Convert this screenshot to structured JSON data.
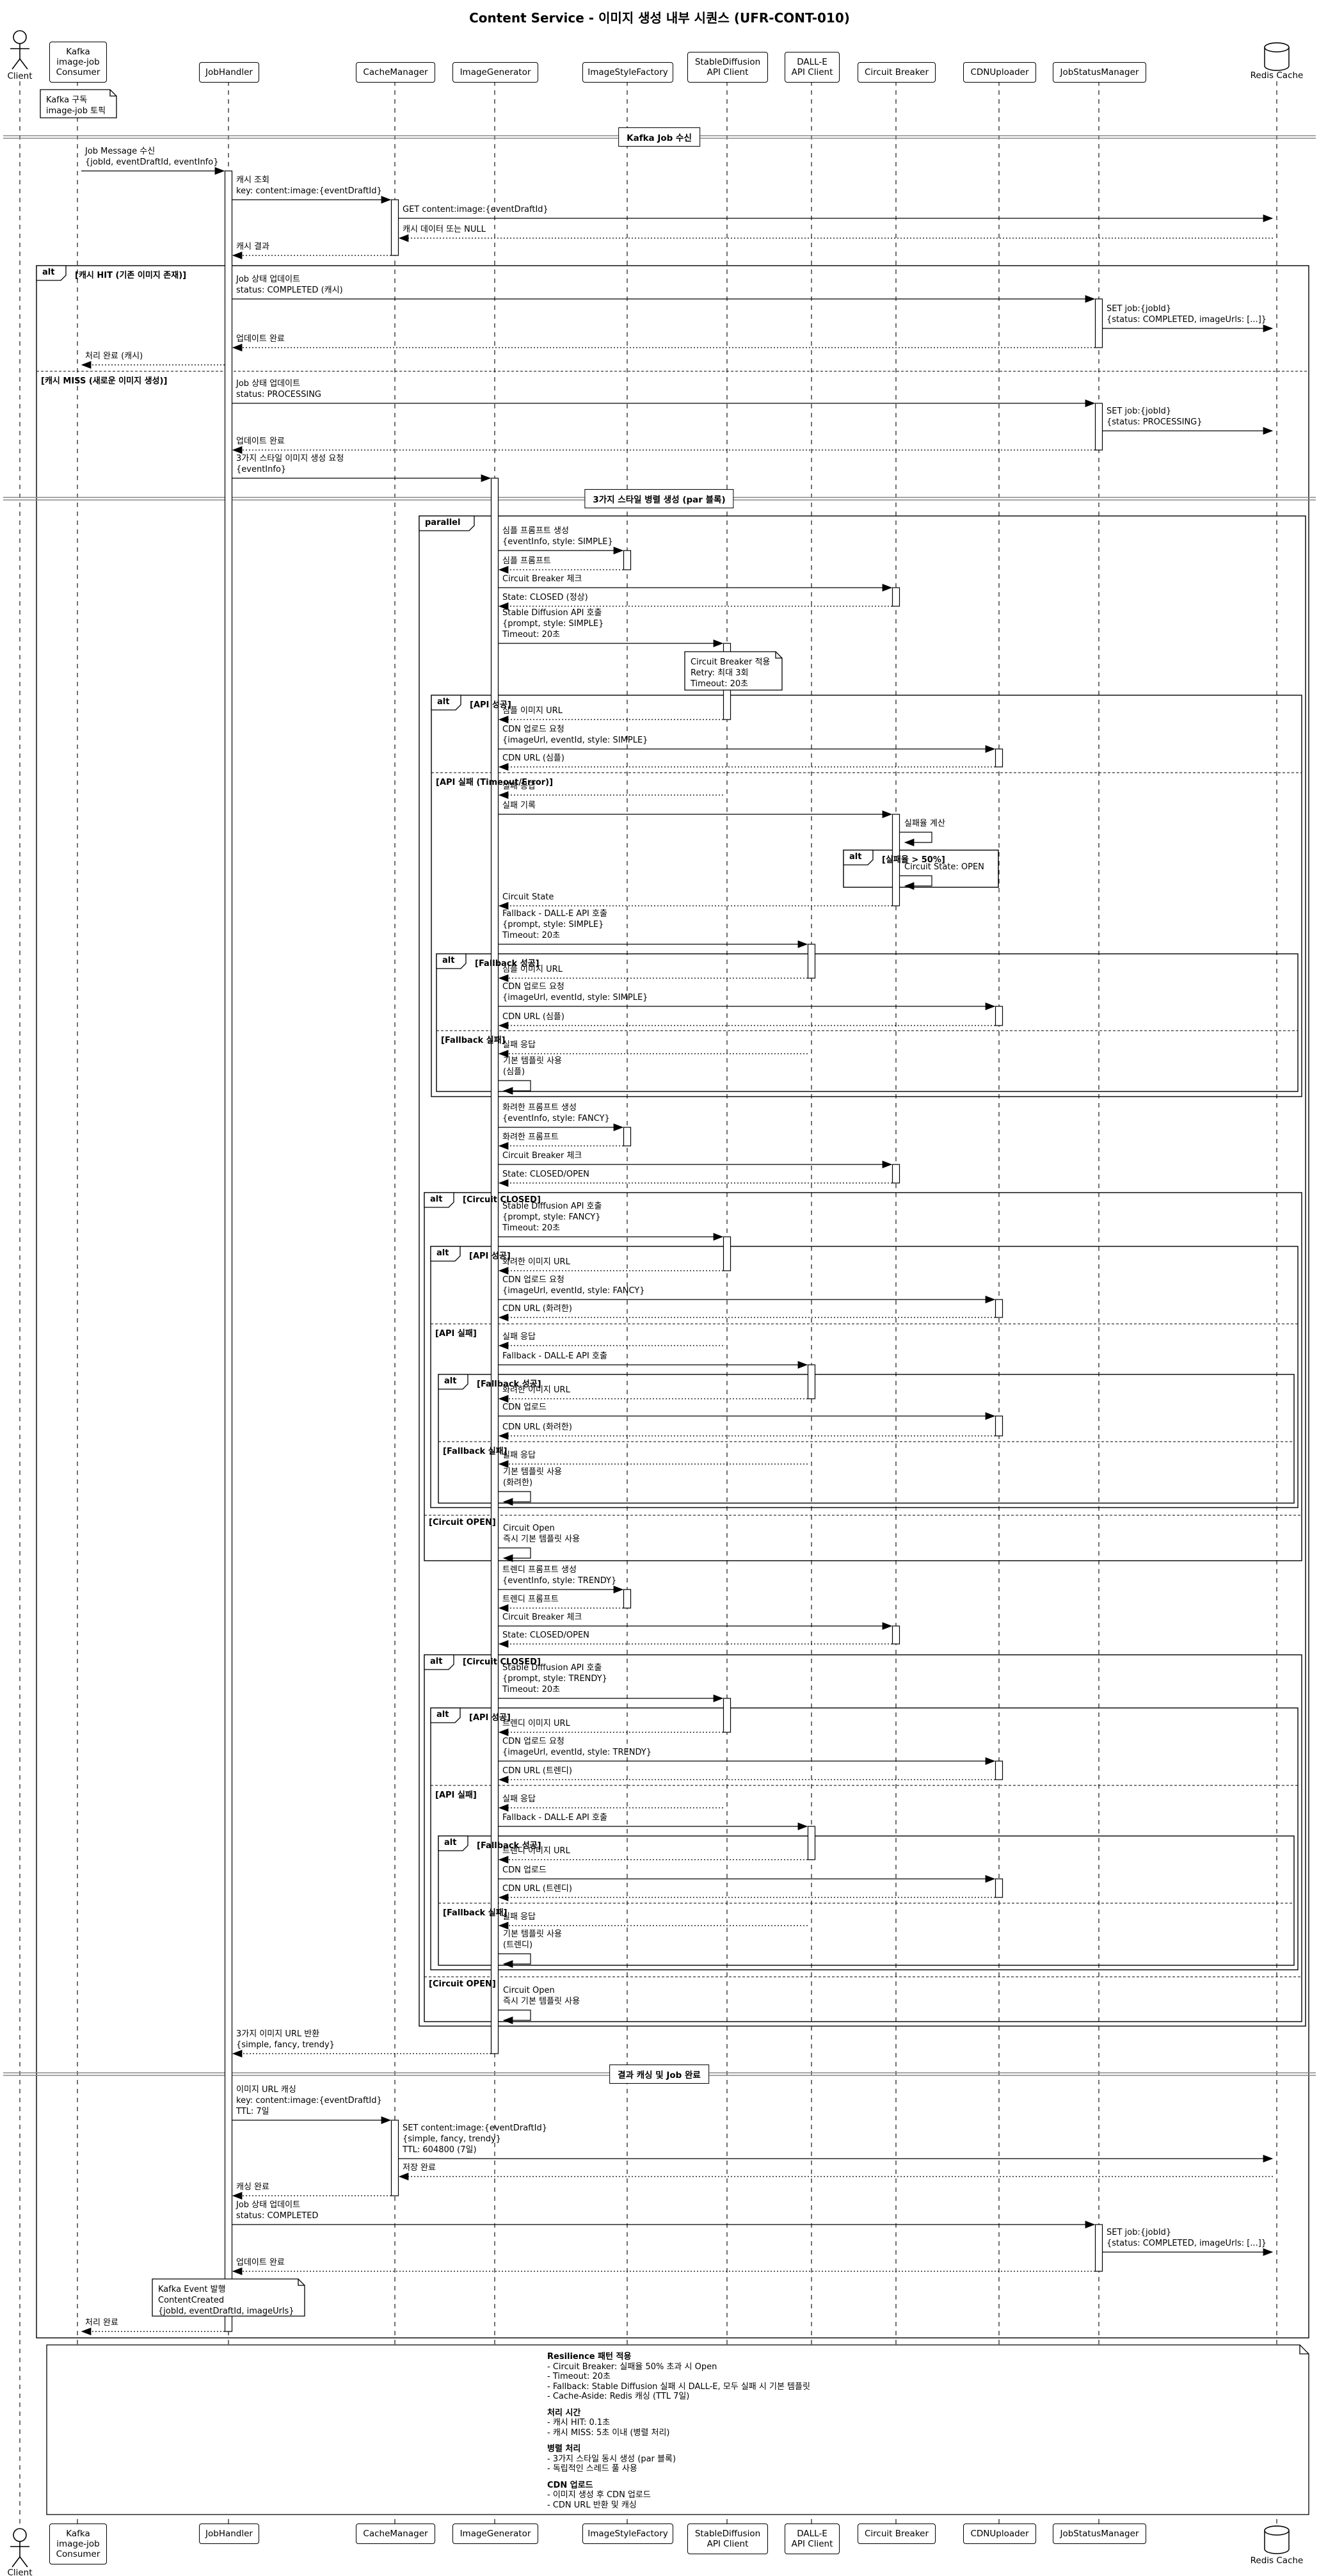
{
  "title": "Content Service - 이미지 생성 내부 시퀀스 (UFR-CONT-010)",
  "participants": [
    {
      "id": "client",
      "type": "actor",
      "label": [
        "Client"
      ]
    },
    {
      "id": "kafka",
      "type": "box",
      "label": [
        "Kafka",
        "image-job",
        "Consumer"
      ]
    },
    {
      "id": "jobhandler",
      "type": "box",
      "label": [
        "JobHandler"
      ]
    },
    {
      "id": "cache",
      "type": "box",
      "label": [
        "CacheManager"
      ]
    },
    {
      "id": "imggen",
      "type": "box",
      "label": [
        "ImageGenerator"
      ]
    },
    {
      "id": "stylefactory",
      "type": "box",
      "label": [
        "ImageStyleFactory"
      ]
    },
    {
      "id": "sd",
      "type": "box",
      "label": [
        "StableDiffusion",
        "API Client"
      ]
    },
    {
      "id": "dalle",
      "type": "box",
      "label": [
        "DALL-E",
        "API Client"
      ]
    },
    {
      "id": "cb",
      "type": "box",
      "label": [
        "Circuit Breaker"
      ]
    },
    {
      "id": "cdn",
      "type": "box",
      "label": [
        "CDNUploader"
      ]
    },
    {
      "id": "jsm",
      "type": "box",
      "label": [
        "JobStatusManager"
      ]
    },
    {
      "id": "redis",
      "type": "database",
      "label": [
        "Redis Cache"
      ]
    }
  ],
  "dividers": [
    {
      "text": "Kafka Job 수신"
    },
    {
      "text": "3가지 스타일 병렬 생성 (par 블록)"
    },
    {
      "text": "결과 캐싱 및 Job 완료"
    }
  ],
  "frames": [
    {
      "label": "alt",
      "guards": [
        "[캐시 HIT (기존 이미지 존재)]",
        "[캐시 MISS (새로운 이미지 생성)]"
      ]
    },
    {
      "label": "parallel",
      "guards": []
    },
    {
      "label": "alt",
      "guards": [
        "[API 성공]",
        "[API 실패 (Timeout/Error)]"
      ]
    },
    {
      "label": "alt",
      "guards": [
        "[실패율 > 50%]"
      ]
    },
    {
      "label": "alt",
      "guards": [
        "[Fallback 성공]",
        "[Fallback 실패]"
      ]
    },
    {
      "label": "alt",
      "guards": [
        "[Circuit CLOSED]",
        "[Circuit OPEN]"
      ]
    },
    {
      "label": "alt",
      "guards": [
        "[API 성공]",
        "[API 실패]"
      ]
    },
    {
      "label": "alt",
      "guards": [
        "[Fallback 성공]",
        "[Fallback 실패]"
      ]
    },
    {
      "label": "alt",
      "guards": [
        "[Circuit CLOSED]",
        "[Circuit OPEN]"
      ]
    },
    {
      "label": "alt",
      "guards": [
        "[API 성공]",
        "[API 실패]"
      ]
    },
    {
      "label": "alt",
      "guards": [
        "[Fallback 성공]",
        "[Fallback 실패]"
      ]
    }
  ],
  "notes": [
    {
      "lines": [
        "Kafka 구독",
        "image-job 토픽"
      ]
    },
    {
      "lines": [
        "Circuit Breaker 적용",
        "Retry: 최대 3회",
        "Timeout: 20초"
      ]
    },
    {
      "lines": [
        "Kafka Event 발행",
        "ContentCreated",
        "{jobId, eventDraftId, imageUrls}"
      ]
    }
  ],
  "legend": {
    "sections": [
      {
        "heading": "Resilience 패턴 적용",
        "items": [
          "- Circuit Breaker: 실패율 50% 초과 시 Open",
          "- Timeout: 20초",
          "- Fallback: Stable Diffusion 실패 시 DALL-E, 모두 실패 시 기본 템플릿",
          "- Cache-Aside: Redis 캐싱 (TTL 7일)"
        ]
      },
      {
        "heading": "처리 시간",
        "items": [
          "- 캐시 HIT: 0.1초",
          "- 캐시 MISS: 5초 이내 (병렬 처리)"
        ]
      },
      {
        "heading": "병렬 처리",
        "items": [
          "- 3가지 스타일 동시 생성 (par 블록)",
          "- 독립적인 스레드 풀 사용"
        ]
      },
      {
        "heading": "CDN 업로드",
        "items": [
          "- 이미지 생성 후 CDN 업로드",
          "- CDN URL 반환 및 캐싱"
        ]
      }
    ]
  },
  "messages": [
    {
      "kind": "msg",
      "from": "kafka",
      "to": "jobhandler",
      "style": "solid",
      "lines": [
        "Job Message 수신",
        "{jobId, eventDraftId, eventInfo}"
      ]
    },
    {
      "kind": "msg",
      "from": "jobhandler",
      "to": "cache",
      "style": "solid",
      "lines": [
        "캐시 조회",
        "key: content:image:{eventDraftId}"
      ]
    },
    {
      "kind": "msg",
      "from": "cache",
      "to": "redis",
      "style": "solid",
      "lines": [
        "GET content:image:{eventDraftId}"
      ]
    },
    {
      "kind": "msg",
      "from": "redis",
      "to": "cache",
      "style": "return",
      "lines": [
        "캐시 데이터 또는 NULL"
      ]
    },
    {
      "kind": "msg",
      "from": "cache",
      "to": "jobhandler",
      "style": "return",
      "lines": [
        "캐시 결과"
      ]
    },
    {
      "kind": "msg",
      "from": "jobhandler",
      "to": "jsm",
      "style": "solid",
      "lines": [
        "Job 상태 업데이트",
        "status: COMPLETED (캐시)"
      ]
    },
    {
      "kind": "msg",
      "from": "jsm",
      "to": "redis",
      "style": "solid",
      "lines": [
        "SET job:{jobId}",
        "{status: COMPLETED, imageUrls: [...]}"
      ]
    },
    {
      "kind": "msg",
      "from": "jsm",
      "to": "jobhandler",
      "style": "return",
      "lines": [
        "업데이트 완료"
      ]
    },
    {
      "kind": "msg",
      "from": "jobhandler",
      "to": "kafka",
      "style": "return",
      "lines": [
        "처리 완료 (캐시)"
      ]
    },
    {
      "kind": "msg",
      "from": "jobhandler",
      "to": "jsm",
      "style": "solid",
      "lines": [
        "Job 상태 업데이트",
        "status: PROCESSING"
      ]
    },
    {
      "kind": "msg",
      "from": "jsm",
      "to": "redis",
      "style": "solid",
      "lines": [
        "SET job:{jobId}",
        "{status: PROCESSING}"
      ]
    },
    {
      "kind": "msg",
      "from": "jsm",
      "to": "jobhandler",
      "style": "return",
      "lines": [
        "업데이트 완료"
      ]
    },
    {
      "kind": "msg",
      "from": "jobhandler",
      "to": "imggen",
      "style": "solid",
      "lines": [
        "3가지 스타일 이미지 생성 요청",
        "{eventInfo}"
      ]
    },
    {
      "kind": "msg",
      "from": "imggen",
      "to": "stylefactory",
      "style": "solid",
      "lines": [
        "심플 프롬프트 생성",
        "{eventInfo, style: SIMPLE}"
      ]
    },
    {
      "kind": "msg",
      "from": "stylefactory",
      "to": "imggen",
      "style": "return",
      "lines": [
        "심플 프롬프트"
      ]
    },
    {
      "kind": "msg",
      "from": "imggen",
      "to": "cb",
      "style": "solid",
      "lines": [
        "Circuit Breaker 체크"
      ]
    },
    {
      "kind": "msg",
      "from": "cb",
      "to": "imggen",
      "style": "return",
      "lines": [
        "State: CLOSED (정상)"
      ]
    },
    {
      "kind": "msg",
      "from": "imggen",
      "to": "sd",
      "style": "solid",
      "lines": [
        "Stable Diffusion API 호출",
        "{prompt, style: SIMPLE}",
        "Timeout: 20초"
      ]
    },
    {
      "kind": "msg",
      "from": "sd",
      "to": "imggen",
      "style": "return",
      "lines": [
        "심플 이미지 URL"
      ]
    },
    {
      "kind": "msg",
      "from": "imggen",
      "to": "cdn",
      "style": "solid",
      "lines": [
        "CDN 업로드 요청",
        "{imageUrl, eventId, style: SIMPLE}"
      ]
    },
    {
      "kind": "msg",
      "from": "cdn",
      "to": "imggen",
      "style": "return",
      "lines": [
        "CDN URL (심플)"
      ]
    },
    {
      "kind": "msg",
      "from": "sd",
      "to": "imggen",
      "style": "return",
      "lines": [
        "실패 응답"
      ]
    },
    {
      "kind": "msg",
      "from": "imggen",
      "to": "cb",
      "style": "solid",
      "lines": [
        "실패 기록"
      ]
    },
    {
      "kind": "self",
      "on": "cb",
      "lines": [
        "실패율 계산"
      ]
    },
    {
      "kind": "self",
      "on": "cb",
      "lines": [
        "Circuit State: OPEN"
      ]
    },
    {
      "kind": "msg",
      "from": "cb",
      "to": "imggen",
      "style": "return",
      "lines": [
        "Circuit State"
      ]
    },
    {
      "kind": "msg",
      "from": "imggen",
      "to": "dalle",
      "style": "solid",
      "lines": [
        "Fallback - DALL-E API 호출",
        "{prompt, style: SIMPLE}",
        "Timeout: 20초"
      ]
    },
    {
      "kind": "msg",
      "from": "dalle",
      "to": "imggen",
      "style": "return",
      "lines": [
        "심플 이미지 URL"
      ]
    },
    {
      "kind": "msg",
      "from": "imggen",
      "to": "cdn",
      "style": "solid",
      "lines": [
        "CDN 업로드 요청",
        "{imageUrl, eventId, style: SIMPLE}"
      ]
    },
    {
      "kind": "msg",
      "from": "cdn",
      "to": "imggen",
      "style": "return",
      "lines": [
        "CDN URL (심플)"
      ]
    },
    {
      "kind": "msg",
      "from": "dalle",
      "to": "imggen",
      "style": "return",
      "lines": [
        "실패 응답"
      ]
    },
    {
      "kind": "self",
      "on": "imggen",
      "lines": [
        "기본 템플릿 사용",
        "(심플)"
      ]
    },
    {
      "kind": "msg",
      "from": "imggen",
      "to": "stylefactory",
      "style": "solid",
      "lines": [
        "화려한 프롬프트 생성",
        "{eventInfo, style: FANCY}"
      ]
    },
    {
      "kind": "msg",
      "from": "stylefactory",
      "to": "imggen",
      "style": "return",
      "lines": [
        "화려한 프롬프트"
      ]
    },
    {
      "kind": "msg",
      "from": "imggen",
      "to": "cb",
      "style": "solid",
      "lines": [
        "Circuit Breaker 체크"
      ]
    },
    {
      "kind": "msg",
      "from": "cb",
      "to": "imggen",
      "style": "return",
      "lines": [
        "State: CLOSED/OPEN"
      ]
    },
    {
      "kind": "msg",
      "from": "imggen",
      "to": "sd",
      "style": "solid",
      "lines": [
        "Stable Diffusion API 호출",
        "{prompt, style: FANCY}",
        "Timeout: 20초"
      ]
    },
    {
      "kind": "msg",
      "from": "sd",
      "to": "imggen",
      "style": "return",
      "lines": [
        "화려한 이미지 URL"
      ]
    },
    {
      "kind": "msg",
      "from": "imggen",
      "to": "cdn",
      "style": "solid",
      "lines": [
        "CDN 업로드 요청",
        "{imageUrl, eventId, style: FANCY}"
      ]
    },
    {
      "kind": "msg",
      "from": "cdn",
      "to": "imggen",
      "style": "return",
      "lines": [
        "CDN URL (화려한)"
      ]
    },
    {
      "kind": "msg",
      "from": "sd",
      "to": "imggen",
      "style": "return",
      "lines": [
        "실패 응답"
      ]
    },
    {
      "kind": "msg",
      "from": "imggen",
      "to": "dalle",
      "style": "solid",
      "lines": [
        "Fallback - DALL-E API 호출"
      ]
    },
    {
      "kind": "msg",
      "from": "dalle",
      "to": "imggen",
      "style": "return",
      "lines": [
        "화려한 이미지 URL"
      ]
    },
    {
      "kind": "msg",
      "from": "imggen",
      "to": "cdn",
      "style": "solid",
      "lines": [
        "CDN 업로드"
      ]
    },
    {
      "kind": "msg",
      "from": "cdn",
      "to": "imggen",
      "style": "return",
      "lines": [
        "CDN URL (화려한)"
      ]
    },
    {
      "kind": "msg",
      "from": "dalle",
      "to": "imggen",
      "style": "return",
      "lines": [
        "실패 응답"
      ]
    },
    {
      "kind": "self",
      "on": "imggen",
      "lines": [
        "기본 템플릿 사용",
        "(화려한)"
      ]
    },
    {
      "kind": "self",
      "on": "imggen",
      "lines": [
        "Circuit Open",
        "즉시 기본 템플릿 사용"
      ]
    },
    {
      "kind": "msg",
      "from": "imggen",
      "to": "stylefactory",
      "style": "solid",
      "lines": [
        "트렌디 프롬프트 생성",
        "{eventInfo, style: TRENDY}"
      ]
    },
    {
      "kind": "msg",
      "from": "stylefactory",
      "to": "imggen",
      "style": "return",
      "lines": [
        "트렌디 프롬프트"
      ]
    },
    {
      "kind": "msg",
      "from": "imggen",
      "to": "cb",
      "style": "solid",
      "lines": [
        "Circuit Breaker 체크"
      ]
    },
    {
      "kind": "msg",
      "from": "cb",
      "to": "imggen",
      "style": "return",
      "lines": [
        "State: CLOSED/OPEN"
      ]
    },
    {
      "kind": "msg",
      "from": "imggen",
      "to": "sd",
      "style": "solid",
      "lines": [
        "Stable Diffusion API 호출",
        "{prompt, style: TRENDY}",
        "Timeout: 20초"
      ]
    },
    {
      "kind": "msg",
      "from": "sd",
      "to": "imggen",
      "style": "return",
      "lines": [
        "트렌디 이미지 URL"
      ]
    },
    {
      "kind": "msg",
      "from": "imggen",
      "to": "cdn",
      "style": "solid",
      "lines": [
        "CDN 업로드 요청",
        "{imageUrl, eventId, style: TRENDY}"
      ]
    },
    {
      "kind": "msg",
      "from": "cdn",
      "to": "imggen",
      "style": "return",
      "lines": [
        "CDN URL (트렌디)"
      ]
    },
    {
      "kind": "msg",
      "from": "sd",
      "to": "imggen",
      "style": "return",
      "lines": [
        "실패 응답"
      ]
    },
    {
      "kind": "msg",
      "from": "imggen",
      "to": "dalle",
      "style": "solid",
      "lines": [
        "Fallback - DALL-E API 호출"
      ]
    },
    {
      "kind": "msg",
      "from": "dalle",
      "to": "imggen",
      "style": "return",
      "lines": [
        "트렌디 이미지 URL"
      ]
    },
    {
      "kind": "msg",
      "from": "imggen",
      "to": "cdn",
      "style": "solid",
      "lines": [
        "CDN 업로드"
      ]
    },
    {
      "kind": "msg",
      "from": "cdn",
      "to": "imggen",
      "style": "return",
      "lines": [
        "CDN URL (트렌디)"
      ]
    },
    {
      "kind": "msg",
      "from": "dalle",
      "to": "imggen",
      "style": "return",
      "lines": [
        "실패 응답"
      ]
    },
    {
      "kind": "self",
      "on": "imggen",
      "lines": [
        "기본 템플릿 사용",
        "(트렌디)"
      ]
    },
    {
      "kind": "self",
      "on": "imggen",
      "lines": [
        "Circuit Open",
        "즉시 기본 템플릿 사용"
      ]
    },
    {
      "kind": "msg",
      "from": "imggen",
      "to": "jobhandler",
      "style": "return",
      "lines": [
        "3가지 이미지 URL 반환",
        "{simple, fancy, trendy}"
      ]
    },
    {
      "kind": "msg",
      "from": "jobhandler",
      "to": "cache",
      "style": "solid",
      "lines": [
        "이미지 URL 캐싱",
        "key: content:image:{eventDraftId}",
        "TTL: 7일"
      ]
    },
    {
      "kind": "msg",
      "from": "cache",
      "to": "redis",
      "style": "solid",
      "lines": [
        "SET content:image:{eventDraftId}",
        "{simple, fancy, trendy}",
        "TTL: 604800 (7일)"
      ]
    },
    {
      "kind": "msg",
      "from": "redis",
      "to": "cache",
      "style": "return",
      "lines": [
        "저장 완료"
      ]
    },
    {
      "kind": "msg",
      "from": "cache",
      "to": "jobhandler",
      "style": "return",
      "lines": [
        "캐싱 완료"
      ]
    },
    {
      "kind": "msg",
      "from": "jobhandler",
      "to": "jsm",
      "style": "solid",
      "lines": [
        "Job 상태 업데이트",
        "status: COMPLETED"
      ]
    },
    {
      "kind": "msg",
      "from": "jsm",
      "to": "redis",
      "style": "solid",
      "lines": [
        "SET job:{jobId}",
        "{status: COMPLETED, imageUrls: [...]}"
      ]
    },
    {
      "kind": "msg",
      "from": "jsm",
      "to": "jobhandler",
      "style": "return",
      "lines": [
        "업데이트 완료"
      ]
    },
    {
      "kind": "msg",
      "from": "jobhandler",
      "to": "kafka",
      "style": "return",
      "lines": [
        "처리 완료"
      ]
    }
  ]
}
